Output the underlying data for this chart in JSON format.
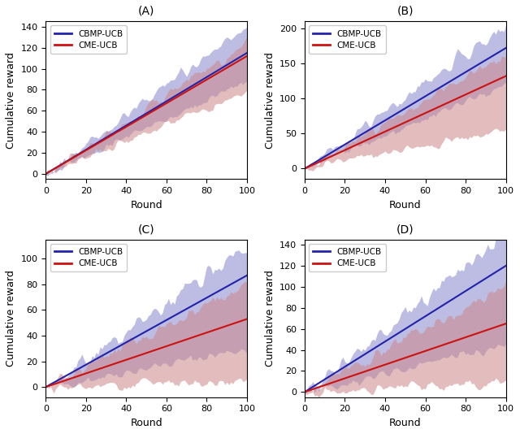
{
  "panels": [
    {
      "title": "(A)",
      "ylim": [
        -5,
        145
      ],
      "yticks": [
        0,
        20,
        40,
        60,
        80,
        100,
        120,
        140
      ],
      "cbmp_mean_slope": 1.15,
      "cme_mean_slope": 1.12,
      "cbmp_upper_slope": 1.4,
      "cbmp_lower_slope": 0.88,
      "cme_upper_slope": 1.25,
      "cme_lower_slope": 0.78,
      "noise_scale": 4.0
    },
    {
      "title": "(B)",
      "ylim": [
        -15,
        210
      ],
      "yticks": [
        0,
        50,
        100,
        150,
        200
      ],
      "cbmp_mean_slope": 1.72,
      "cme_mean_slope": 1.32,
      "cbmp_upper_slope": 2.02,
      "cbmp_lower_slope": 1.2,
      "cme_upper_slope": 1.62,
      "cme_lower_slope": 0.55,
      "noise_scale": 6.0
    },
    {
      "title": "(C)",
      "ylim": [
        -8,
        115
      ],
      "yticks": [
        0,
        20,
        40,
        60,
        80,
        100
      ],
      "cbmp_mean_slope": 0.87,
      "cme_mean_slope": 0.53,
      "cbmp_upper_slope": 1.1,
      "cbmp_lower_slope": 0.3,
      "cme_upper_slope": 0.8,
      "cme_lower_slope": 0.05,
      "noise_scale": 4.0
    },
    {
      "title": "(D)",
      "ylim": [
        -5,
        145
      ],
      "yticks": [
        0,
        20,
        40,
        60,
        80,
        100,
        120,
        140
      ],
      "cbmp_mean_slope": 1.2,
      "cme_mean_slope": 0.65,
      "cbmp_upper_slope": 1.5,
      "cbmp_lower_slope": 0.45,
      "cme_upper_slope": 1.0,
      "cme_lower_slope": 0.1,
      "noise_scale": 5.0
    }
  ],
  "n_rounds": 101,
  "blue_color": "#2222aa",
  "red_color": "#cc1111",
  "blue_fill": "#8888cc",
  "red_fill": "#cc8888",
  "blue_alpha": 0.55,
  "red_alpha": 0.55,
  "xlabel": "Round",
  "ylabel": "Cumulative reward",
  "legend_labels": [
    "CBMP-UCB",
    "CME-UCB"
  ],
  "figsize": [
    6.4,
    5.34
  ],
  "dpi": 100
}
